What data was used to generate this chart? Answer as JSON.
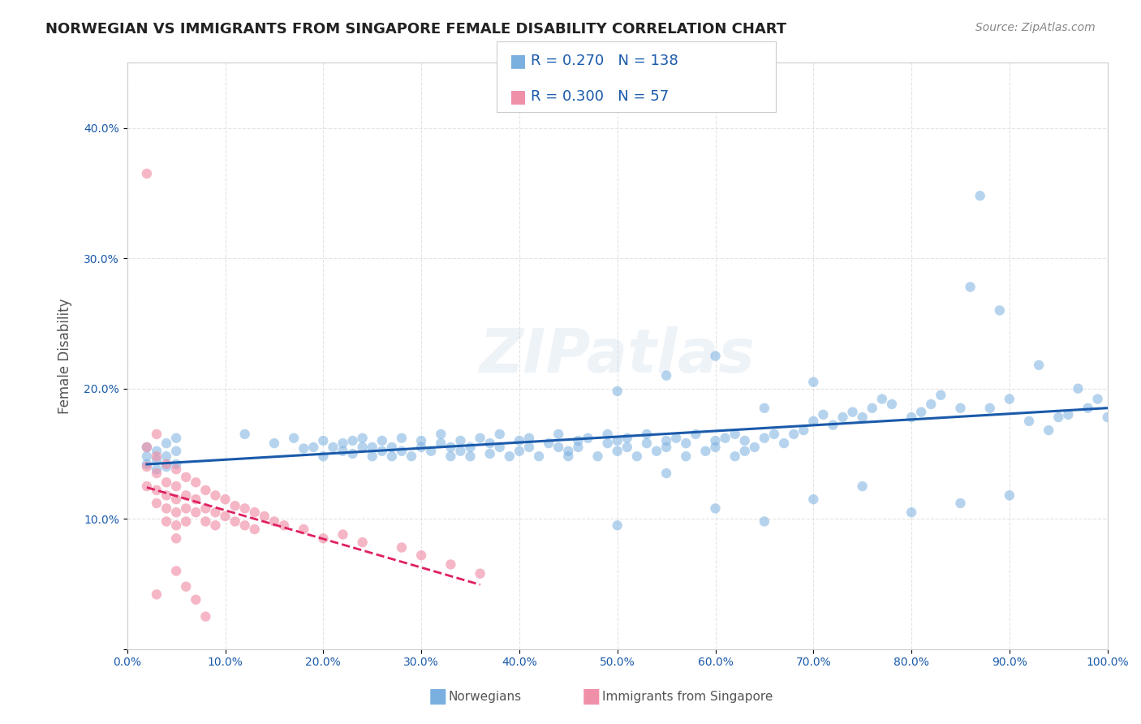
{
  "title": "NORWEGIAN VS IMMIGRANTS FROM SINGAPORE FEMALE DISABILITY CORRELATION CHART",
  "source": "Source: ZipAtlas.com",
  "ylabel": "Female Disability",
  "watermark": "ZIPatlas",
  "legend_norwegian": {
    "R": 0.27,
    "N": 138
  },
  "legend_singapore": {
    "R": 0.3,
    "N": 57
  },
  "norwegian_color": "#7ab0e0",
  "singapore_color": "#f090a8",
  "trendline_norwegian_color": "#1a5aaa",
  "trendline_singapore_color": "#e02060",
  "xlim": [
    0.0,
    1.0
  ],
  "ylim": [
    0.0,
    0.45
  ],
  "xticks": [
    0.0,
    0.1,
    0.2,
    0.3,
    0.4,
    0.5,
    0.6,
    0.7,
    0.8,
    0.9,
    1.0
  ],
  "yticks": [
    0.0,
    0.1,
    0.2,
    0.3,
    0.4
  ],
  "xticklabels": [
    "0.0%",
    "10.0%",
    "20.0%",
    "30.0%",
    "40.0%",
    "50.0%",
    "60.0%",
    "70.0%",
    "80.0%",
    "90.0%",
    "100.0%"
  ],
  "yticklabels": [
    "",
    "10.0%",
    "20.0%",
    "30.0%",
    "40.0%"
  ],
  "background_color": "#ffffff",
  "grid_color": "#dddddd",
  "title_color": "#222222",
  "label_color": "#555555",
  "tick_color": "#1a5aaa",
  "legend_label_norwegian": "Norwegians",
  "legend_label_singapore": "Immigrants from Singapore",
  "norwegian_x": [
    0.02,
    0.02,
    0.02,
    0.03,
    0.03,
    0.03,
    0.04,
    0.04,
    0.04,
    0.05,
    0.05,
    0.05,
    0.12,
    0.15,
    0.17,
    0.18,
    0.19,
    0.2,
    0.2,
    0.21,
    0.22,
    0.22,
    0.23,
    0.23,
    0.24,
    0.24,
    0.25,
    0.25,
    0.26,
    0.26,
    0.27,
    0.27,
    0.28,
    0.28,
    0.29,
    0.3,
    0.3,
    0.31,
    0.32,
    0.32,
    0.33,
    0.33,
    0.34,
    0.34,
    0.35,
    0.35,
    0.36,
    0.37,
    0.37,
    0.38,
    0.38,
    0.39,
    0.4,
    0.4,
    0.41,
    0.41,
    0.42,
    0.43,
    0.44,
    0.44,
    0.45,
    0.45,
    0.46,
    0.46,
    0.47,
    0.48,
    0.49,
    0.49,
    0.5,
    0.5,
    0.51,
    0.51,
    0.52,
    0.53,
    0.53,
    0.54,
    0.55,
    0.55,
    0.56,
    0.57,
    0.57,
    0.58,
    0.59,
    0.6,
    0.6,
    0.61,
    0.62,
    0.62,
    0.63,
    0.63,
    0.64,
    0.65,
    0.66,
    0.67,
    0.68,
    0.69,
    0.7,
    0.71,
    0.72,
    0.73,
    0.74,
    0.75,
    0.76,
    0.77,
    0.78,
    0.8,
    0.81,
    0.82,
    0.83,
    0.85,
    0.86,
    0.87,
    0.88,
    0.89,
    0.9,
    0.92,
    0.93,
    0.94,
    0.95,
    0.96,
    0.97,
    0.98,
    0.99,
    1.0,
    0.5,
    0.55,
    0.6,
    0.65,
    0.7,
    0.75,
    0.8,
    0.85,
    0.9,
    0.5,
    0.55,
    0.6,
    0.65,
    0.7
  ],
  "norwegian_y": [
    0.155,
    0.148,
    0.142,
    0.152,
    0.145,
    0.138,
    0.158,
    0.148,
    0.14,
    0.162,
    0.152,
    0.142,
    0.165,
    0.158,
    0.162,
    0.154,
    0.155,
    0.16,
    0.148,
    0.155,
    0.152,
    0.158,
    0.15,
    0.16,
    0.155,
    0.162,
    0.148,
    0.155,
    0.152,
    0.16,
    0.148,
    0.155,
    0.152,
    0.162,
    0.148,
    0.155,
    0.16,
    0.152,
    0.158,
    0.165,
    0.148,
    0.155,
    0.152,
    0.16,
    0.148,
    0.155,
    0.162,
    0.15,
    0.158,
    0.155,
    0.165,
    0.148,
    0.152,
    0.16,
    0.155,
    0.162,
    0.148,
    0.158,
    0.155,
    0.165,
    0.148,
    0.152,
    0.16,
    0.155,
    0.162,
    0.148,
    0.158,
    0.165,
    0.152,
    0.16,
    0.155,
    0.162,
    0.148,
    0.158,
    0.165,
    0.152,
    0.16,
    0.155,
    0.162,
    0.148,
    0.158,
    0.165,
    0.152,
    0.16,
    0.155,
    0.162,
    0.148,
    0.165,
    0.152,
    0.16,
    0.155,
    0.162,
    0.165,
    0.158,
    0.165,
    0.168,
    0.175,
    0.18,
    0.172,
    0.178,
    0.182,
    0.178,
    0.185,
    0.192,
    0.188,
    0.178,
    0.182,
    0.188,
    0.195,
    0.185,
    0.278,
    0.348,
    0.185,
    0.26,
    0.192,
    0.175,
    0.218,
    0.168,
    0.178,
    0.18,
    0.2,
    0.185,
    0.192,
    0.178,
    0.095,
    0.135,
    0.108,
    0.098,
    0.115,
    0.125,
    0.105,
    0.112,
    0.118,
    0.198,
    0.21,
    0.225,
    0.185,
    0.205
  ],
  "singapore_x": [
    0.02,
    0.02,
    0.02,
    0.02,
    0.03,
    0.03,
    0.03,
    0.03,
    0.03,
    0.04,
    0.04,
    0.04,
    0.04,
    0.04,
    0.05,
    0.05,
    0.05,
    0.05,
    0.05,
    0.05,
    0.06,
    0.06,
    0.06,
    0.06,
    0.07,
    0.07,
    0.07,
    0.08,
    0.08,
    0.08,
    0.09,
    0.09,
    0.09,
    0.1,
    0.1,
    0.11,
    0.11,
    0.12,
    0.12,
    0.13,
    0.13,
    0.14,
    0.15,
    0.16,
    0.18,
    0.2,
    0.22,
    0.24,
    0.28,
    0.3,
    0.33,
    0.36,
    0.05,
    0.06,
    0.07,
    0.08,
    0.03
  ],
  "singapore_y": [
    0.365,
    0.155,
    0.14,
    0.125,
    0.165,
    0.148,
    0.135,
    0.122,
    0.112,
    0.142,
    0.128,
    0.118,
    0.108,
    0.098,
    0.138,
    0.125,
    0.115,
    0.105,
    0.095,
    0.085,
    0.132,
    0.118,
    0.108,
    0.098,
    0.128,
    0.115,
    0.105,
    0.122,
    0.108,
    0.098,
    0.118,
    0.105,
    0.095,
    0.115,
    0.102,
    0.11,
    0.098,
    0.108,
    0.095,
    0.105,
    0.092,
    0.102,
    0.098,
    0.095,
    0.092,
    0.085,
    0.088,
    0.082,
    0.078,
    0.072,
    0.065,
    0.058,
    0.06,
    0.048,
    0.038,
    0.025,
    0.042
  ]
}
